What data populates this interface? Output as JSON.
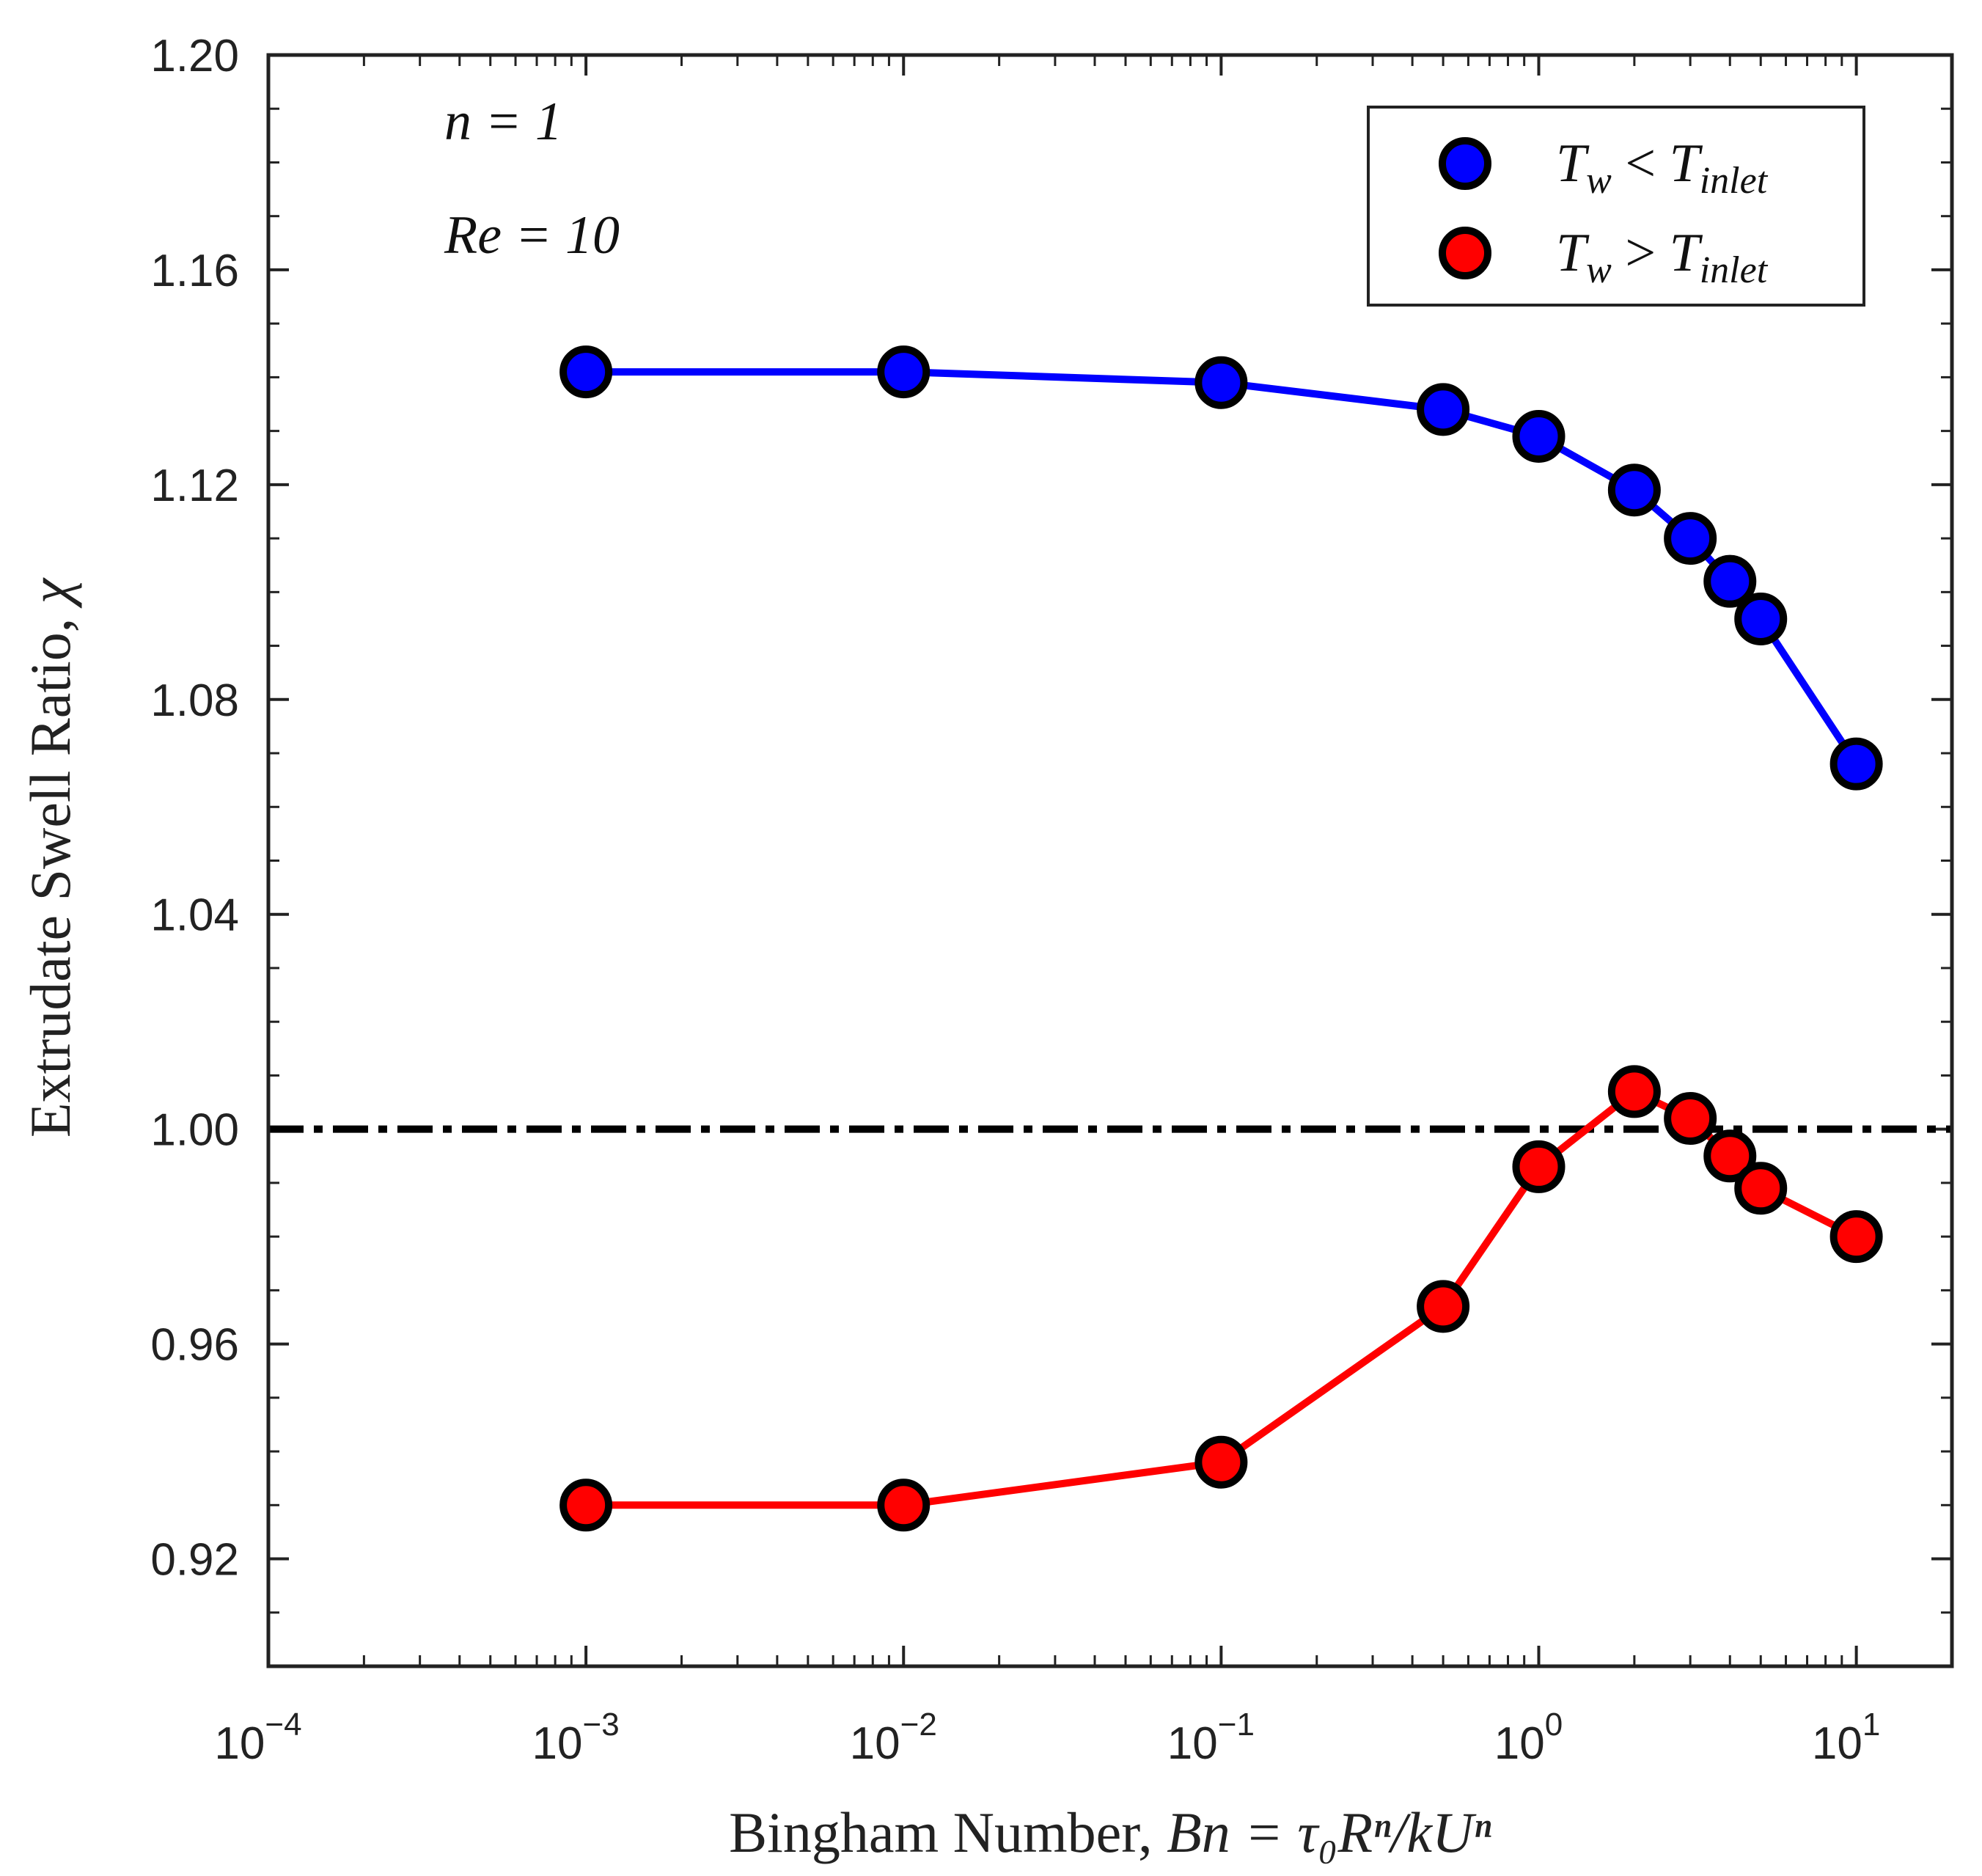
{
  "chart_data": {
    "type": "line",
    "x_scale": "log",
    "xlim": [
      0.0001,
      20
    ],
    "ylim": [
      0.9,
      1.2
    ],
    "xticks": [
      0.0001,
      0.001,
      0.01,
      0.1,
      1,
      10
    ],
    "xtick_labels": [
      {
        "base": "10",
        "exp": "−4"
      },
      {
        "base": "10",
        "exp": "−3"
      },
      {
        "base": "10",
        "exp": "−2"
      },
      {
        "base": "10",
        "exp": "−1"
      },
      {
        "base": "10",
        "exp": "0"
      },
      {
        "base": "10",
        "exp": "1"
      }
    ],
    "yticks": [
      0.92,
      0.96,
      1.0,
      1.04,
      1.08,
      1.12,
      1.16,
      1.2
    ],
    "ytick_labels": [
      "0.92",
      "0.96",
      "1.00",
      "1.04",
      "1.08",
      "1.12",
      "1.16",
      "1.20"
    ],
    "xlabel": {
      "text": "Bingham Number, ",
      "math": "Bn = τ₀Rⁿ/kUⁿ"
    },
    "ylabel": {
      "text": "Extrudate Swell Ratio, ",
      "math": "χ"
    },
    "annotations": [
      {
        "text": "n = 1"
      },
      {
        "text": "Re = 10"
      }
    ],
    "reference_line": {
      "y": 1.0,
      "style": "dash-dot",
      "color": "#000000"
    },
    "series": [
      {
        "name": "T_w < T_inlet",
        "legend_main": "T",
        "legend_sub1": "w",
        "legend_op": "<",
        "legend_main2": "T",
        "legend_sub2": "inlet",
        "color": "#0000ff",
        "x": [
          0.001,
          0.01,
          0.1,
          0.5,
          1,
          2,
          3,
          4,
          5,
          10
        ],
        "y": [
          1.141,
          1.141,
          1.139,
          1.134,
          1.129,
          1.119,
          1.11,
          1.102,
          1.095,
          1.068
        ]
      },
      {
        "name": "T_w > T_inlet",
        "legend_main": "T",
        "legend_sub1": "w",
        "legend_op": ">",
        "legend_main2": "T",
        "legend_sub2": "inlet",
        "color": "#ff0000",
        "x": [
          0.001,
          0.01,
          0.1,
          0.5,
          1,
          2,
          3,
          4,
          5,
          10
        ],
        "y": [
          0.93,
          0.93,
          0.938,
          0.967,
          0.993,
          1.007,
          1.002,
          0.995,
          0.989,
          0.98
        ]
      }
    ]
  }
}
